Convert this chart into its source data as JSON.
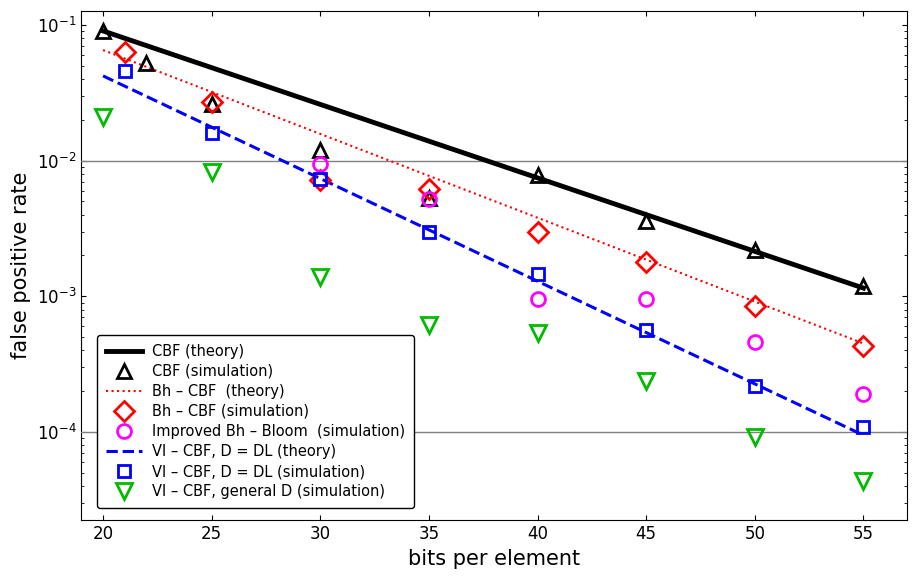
{
  "title": "",
  "xlabel": "bits per element",
  "ylabel": "false positive rate",
  "xlim": [
    19,
    57
  ],
  "xticks": [
    20,
    25,
    30,
    35,
    40,
    45,
    50,
    55
  ],
  "hlines": [
    0.01,
    0.0001
  ],
  "cbf_theory": {
    "color": "#000000",
    "linewidth": 3.5,
    "linestyle": "-",
    "endpoints": [
      [
        20,
        0.09
      ],
      [
        55,
        0.00115
      ]
    ]
  },
  "cbf_sim": {
    "x": [
      20,
      22,
      25,
      30,
      35,
      40,
      45,
      50,
      55
    ],
    "y": [
      0.09,
      0.052,
      0.026,
      0.012,
      0.0053,
      0.0078,
      0.0036,
      0.0022,
      0.0012
    ],
    "color": "#000000",
    "marker": "^",
    "markersize": 10,
    "fillstyle": "none",
    "markeredgewidth": 2.0
  },
  "bh_cbf_theory": {
    "color": "#ff0000",
    "linewidth": 1.5,
    "linestyle": ":",
    "endpoints": [
      [
        20,
        0.065
      ],
      [
        55,
        0.00045
      ]
    ]
  },
  "bh_cbf_sim": {
    "x": [
      21,
      25,
      30,
      35,
      40,
      45,
      50,
      55
    ],
    "y": [
      0.063,
      0.027,
      0.0072,
      0.0062,
      0.003,
      0.0018,
      0.00085,
      0.00043
    ],
    "color": "#ff0000",
    "marker": "D",
    "markersize": 10,
    "fillstyle": "none",
    "markeredgewidth": 2.0
  },
  "improved_bh_bloom_sim": {
    "x": [
      30,
      35,
      40,
      45,
      50,
      55
    ],
    "y": [
      0.0095,
      0.0052,
      0.00095,
      0.00095,
      0.00046,
      0.00019
    ],
    "color": "#ff00ff",
    "marker": "o",
    "markersize": 10,
    "fillstyle": "none",
    "markeredgewidth": 2.0
  },
  "vi_cbf_dl_theory": {
    "color": "#0000ff",
    "linewidth": 2.2,
    "linestyle": "--",
    "endpoints": [
      [
        20,
        0.042
      ],
      [
        55,
        9.5e-05
      ]
    ]
  },
  "vi_cbf_dl_sim": {
    "x": [
      21,
      25,
      30,
      35,
      40,
      45,
      50,
      55
    ],
    "y": [
      0.046,
      0.016,
      0.0073,
      0.003,
      0.00145,
      0.00057,
      0.00022,
      0.00011
    ],
    "color": "#0000ff",
    "marker": "s",
    "markersize": 9,
    "fillstyle": "none",
    "markeredgewidth": 2.0
  },
  "vi_cbf_gen_sim": {
    "x": [
      20,
      25,
      30,
      35,
      40,
      45,
      50,
      55
    ],
    "y": [
      0.021,
      0.0082,
      0.0014,
      0.00062,
      0.00054,
      0.00024,
      9.2e-05,
      4.4e-05
    ],
    "color": "#00bb00",
    "marker": "v",
    "markersize": 11,
    "fillstyle": "none",
    "markeredgewidth": 2.0
  }
}
